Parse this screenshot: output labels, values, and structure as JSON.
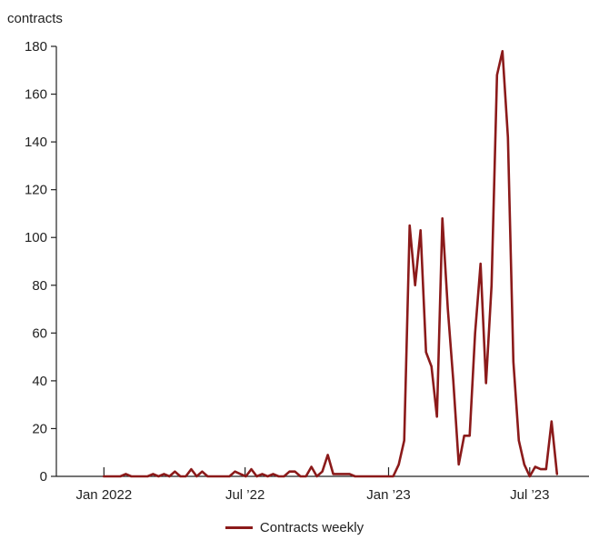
{
  "chart_data": {
    "type": "line",
    "ylabel": "contracts",
    "ylim": [
      0,
      180
    ],
    "yticks": [
      0,
      20,
      40,
      60,
      80,
      100,
      120,
      140,
      160,
      180
    ],
    "xlim": [
      "2021-11-01",
      "2023-09-15"
    ],
    "xticks": [
      {
        "date": "2022-01-01",
        "label": "Jan 2022"
      },
      {
        "date": "2022-07-01",
        "label": "Jul ’22"
      },
      {
        "date": "2023-01-01",
        "label": "Jan ’23"
      },
      {
        "date": "2023-07-01",
        "label": "Jul ’23"
      }
    ],
    "grid": false,
    "legend": "bottom-center",
    "series": [
      {
        "name": "Contracts weekly",
        "color": "#8b1a1a",
        "x": [
          "2022-01-01",
          "2022-01-08",
          "2022-01-15",
          "2022-01-22",
          "2022-01-29",
          "2022-02-05",
          "2022-02-12",
          "2022-02-19",
          "2022-02-26",
          "2022-03-05",
          "2022-03-12",
          "2022-03-19",
          "2022-03-26",
          "2022-04-02",
          "2022-04-09",
          "2022-04-16",
          "2022-04-23",
          "2022-04-30",
          "2022-05-07",
          "2022-05-14",
          "2022-05-21",
          "2022-05-28",
          "2022-06-04",
          "2022-06-11",
          "2022-06-18",
          "2022-06-25",
          "2022-07-02",
          "2022-07-09",
          "2022-07-16",
          "2022-07-23",
          "2022-07-30",
          "2022-08-06",
          "2022-08-13",
          "2022-08-20",
          "2022-08-27",
          "2022-09-03",
          "2022-09-10",
          "2022-09-17",
          "2022-09-24",
          "2022-10-01",
          "2022-10-08",
          "2022-10-15",
          "2022-10-22",
          "2022-10-29",
          "2022-11-05",
          "2022-11-12",
          "2022-11-19",
          "2022-11-26",
          "2022-12-03",
          "2022-12-10",
          "2022-12-17",
          "2022-12-24",
          "2022-12-31",
          "2023-01-07",
          "2023-01-14",
          "2023-01-21",
          "2023-01-28",
          "2023-02-04",
          "2023-02-11",
          "2023-02-18",
          "2023-02-25",
          "2023-03-04",
          "2023-03-11",
          "2023-03-18",
          "2023-03-25",
          "2023-04-01",
          "2023-04-08",
          "2023-04-15",
          "2023-04-22",
          "2023-04-29",
          "2023-05-06",
          "2023-05-13",
          "2023-05-20",
          "2023-05-27",
          "2023-06-03",
          "2023-06-10",
          "2023-06-17",
          "2023-06-24",
          "2023-07-01",
          "2023-07-08",
          "2023-07-15",
          "2023-07-22",
          "2023-07-29",
          "2023-08-05"
        ],
        "y": [
          0,
          0,
          0,
          0,
          1,
          0,
          0,
          0,
          0,
          1,
          0,
          1,
          0,
          2,
          0,
          0,
          3,
          0,
          2,
          0,
          0,
          0,
          0,
          0,
          2,
          1,
          0,
          3,
          0,
          1,
          0,
          1,
          0,
          0,
          2,
          2,
          0,
          0,
          4,
          0,
          2,
          9,
          1,
          1,
          1,
          1,
          0,
          0,
          0,
          0,
          0,
          0,
          0,
          0,
          5,
          15,
          105,
          80,
          103,
          52,
          46,
          25,
          108,
          70,
          40,
          5,
          17,
          17,
          60,
          89,
          39,
          80,
          168,
          178,
          142,
          48,
          15,
          5,
          0,
          4,
          3,
          3,
          23,
          1
        ]
      }
    ]
  }
}
